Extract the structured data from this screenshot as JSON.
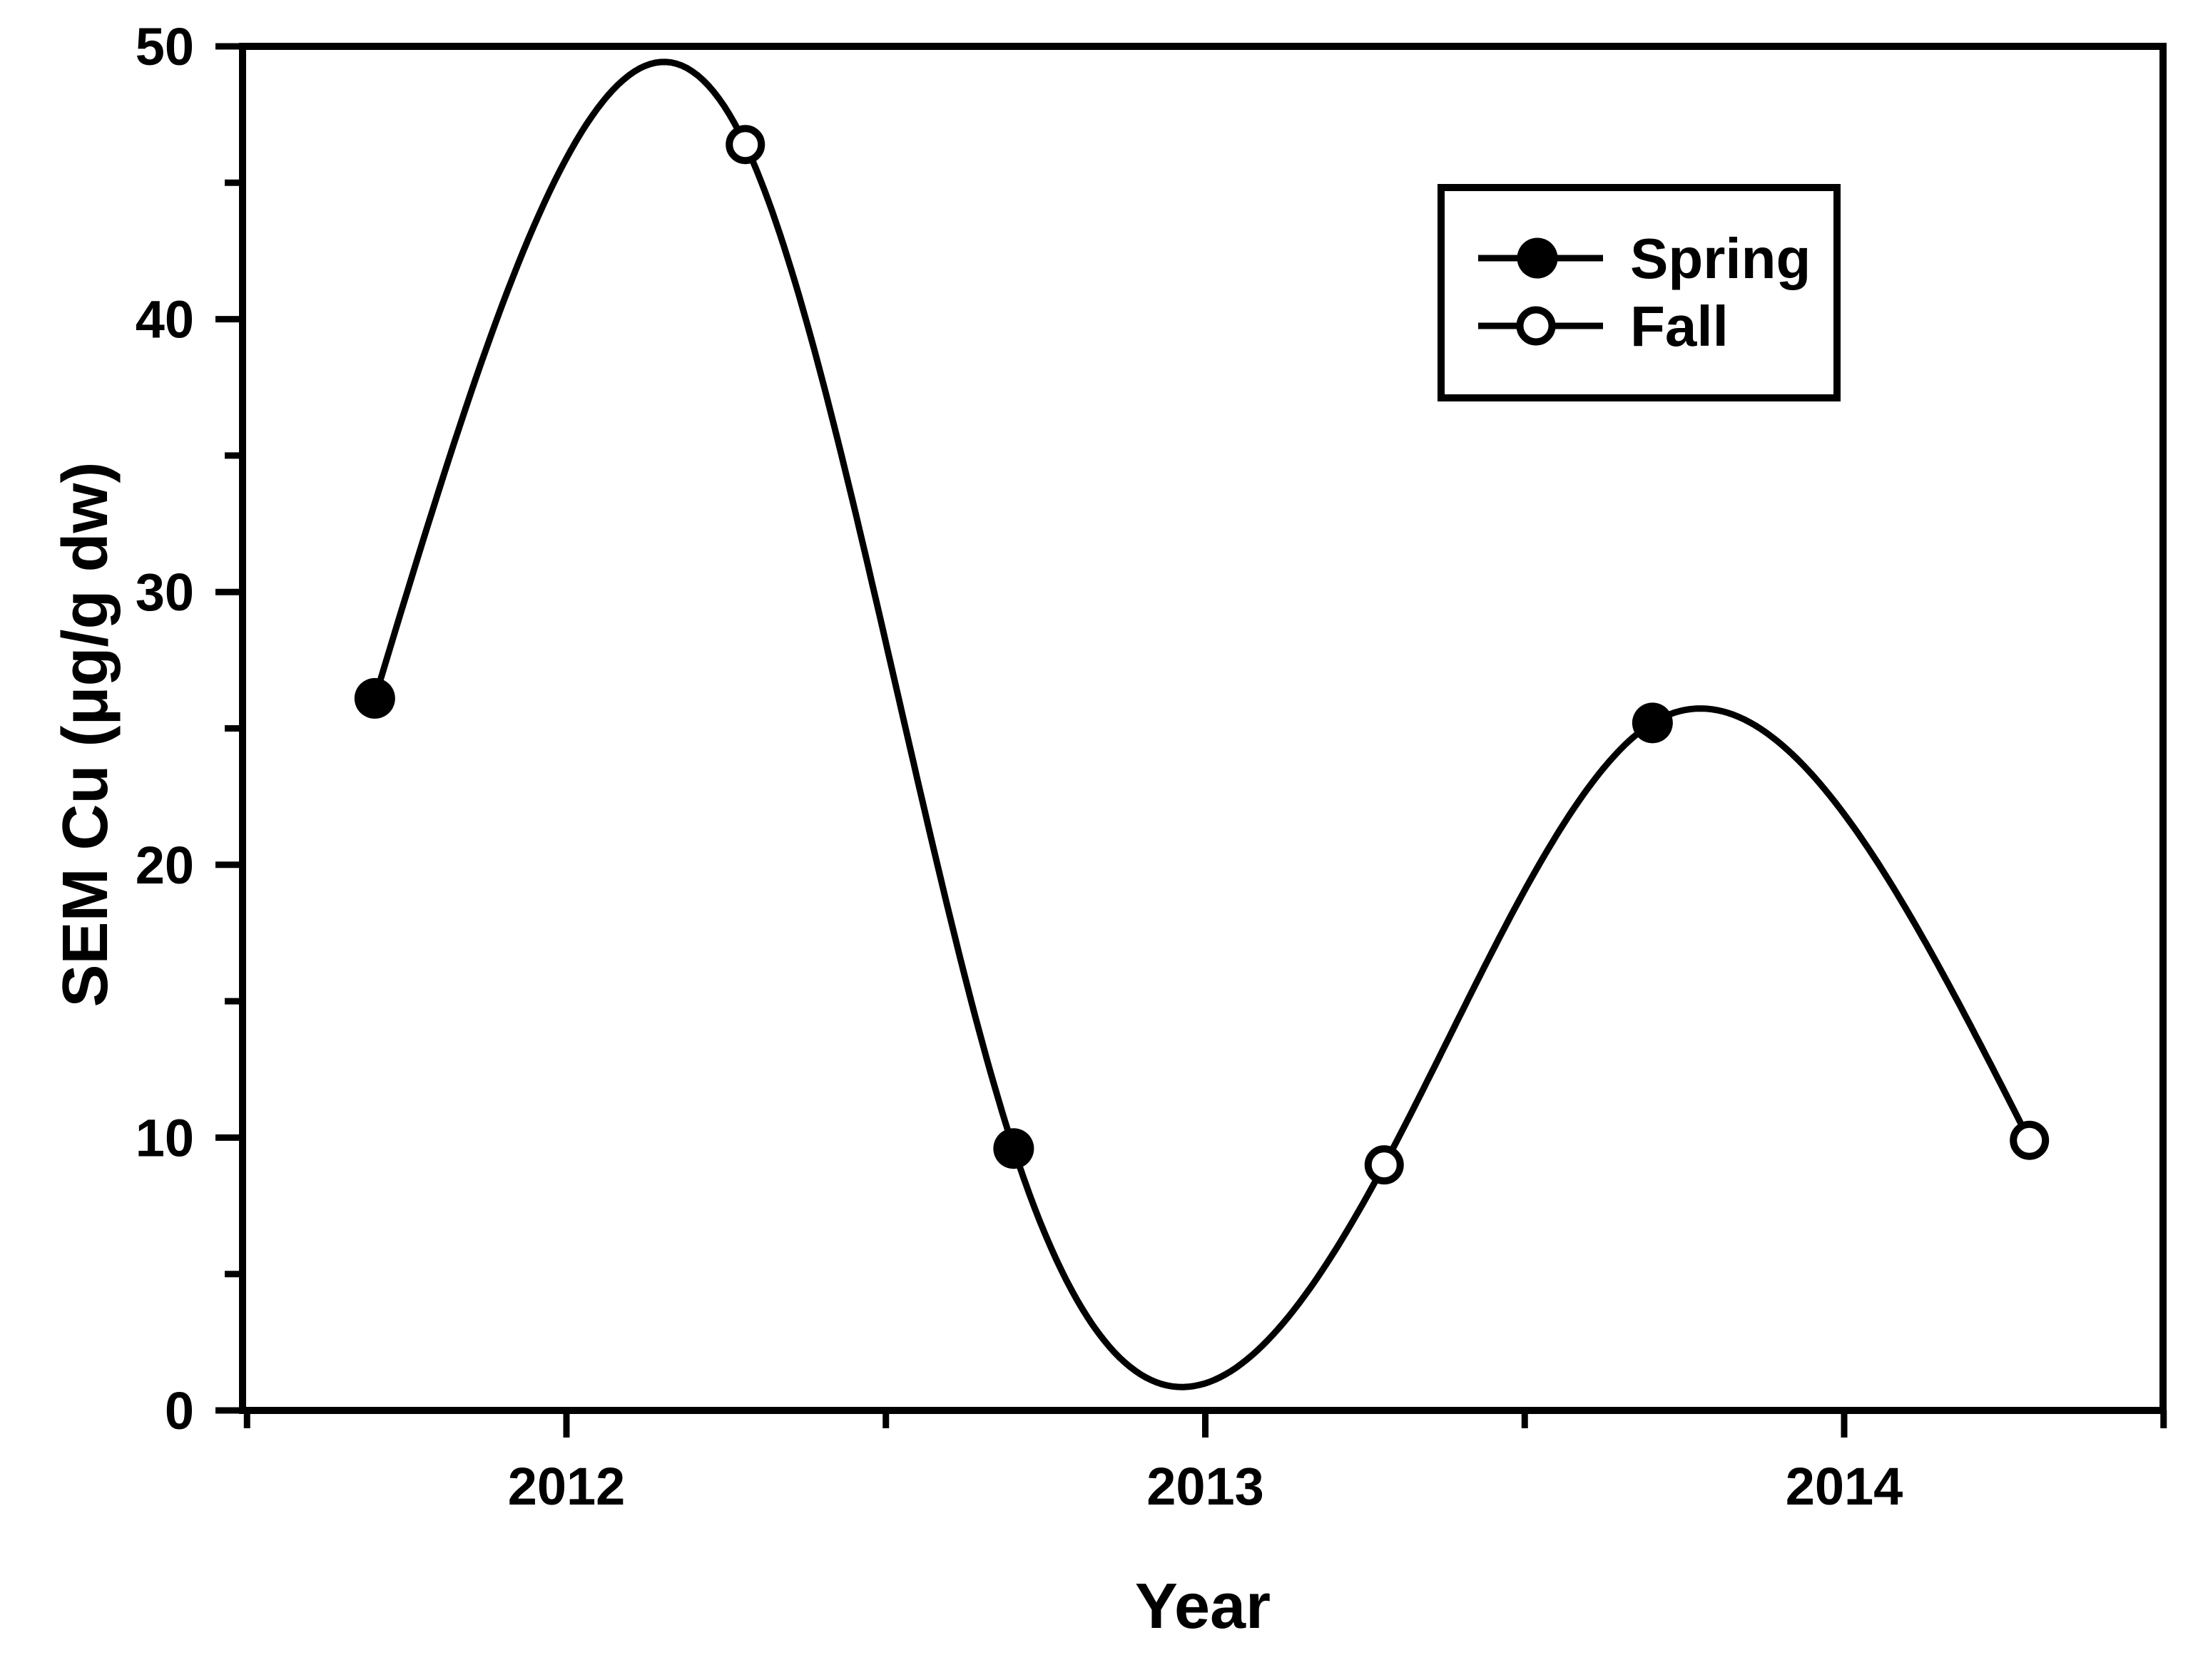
{
  "chart_data": {
    "type": "line",
    "title": "",
    "xlabel": "Year",
    "ylabel": "SEM Cu (μg/g dw)",
    "xlim": [
      2011.493,
      2014.5
    ],
    "ylim": [
      0,
      50
    ],
    "x_major_ticks": [
      2012,
      2013,
      2014
    ],
    "x_minor_ticks": [
      2011.5,
      2012.5,
      2013.5,
      2014.5
    ],
    "y_major_ticks": [
      0,
      10,
      20,
      30,
      40,
      50
    ],
    "y_minor_ticks": [
      5,
      15,
      25,
      35,
      45
    ],
    "grid": false,
    "curve_style": "single smooth natural cubic spline through all points in chronological order",
    "series": [
      {
        "name": "Spring",
        "marker": "filled-circle",
        "x": [
          2011.7,
          2012.7,
          2013.7
        ],
        "y": [
          26.1,
          9.6,
          25.2
        ]
      },
      {
        "name": "Fall",
        "marker": "open-circle",
        "x": [
          2012.28,
          2013.28,
          2014.29
        ],
        "y": [
          46.4,
          9.0,
          9.9
        ]
      }
    ],
    "legend": {
      "position": "upper-right",
      "entries": [
        {
          "label": "Spring",
          "marker": "filled-circle"
        },
        {
          "label": "Fall",
          "marker": "open-circle"
        }
      ]
    },
    "colors": {
      "line": "#000000",
      "axis": "#000000",
      "text": "#000000",
      "marker_fill": "#000000",
      "open_marker_fill": "#ffffff",
      "background": "#ffffff"
    }
  }
}
